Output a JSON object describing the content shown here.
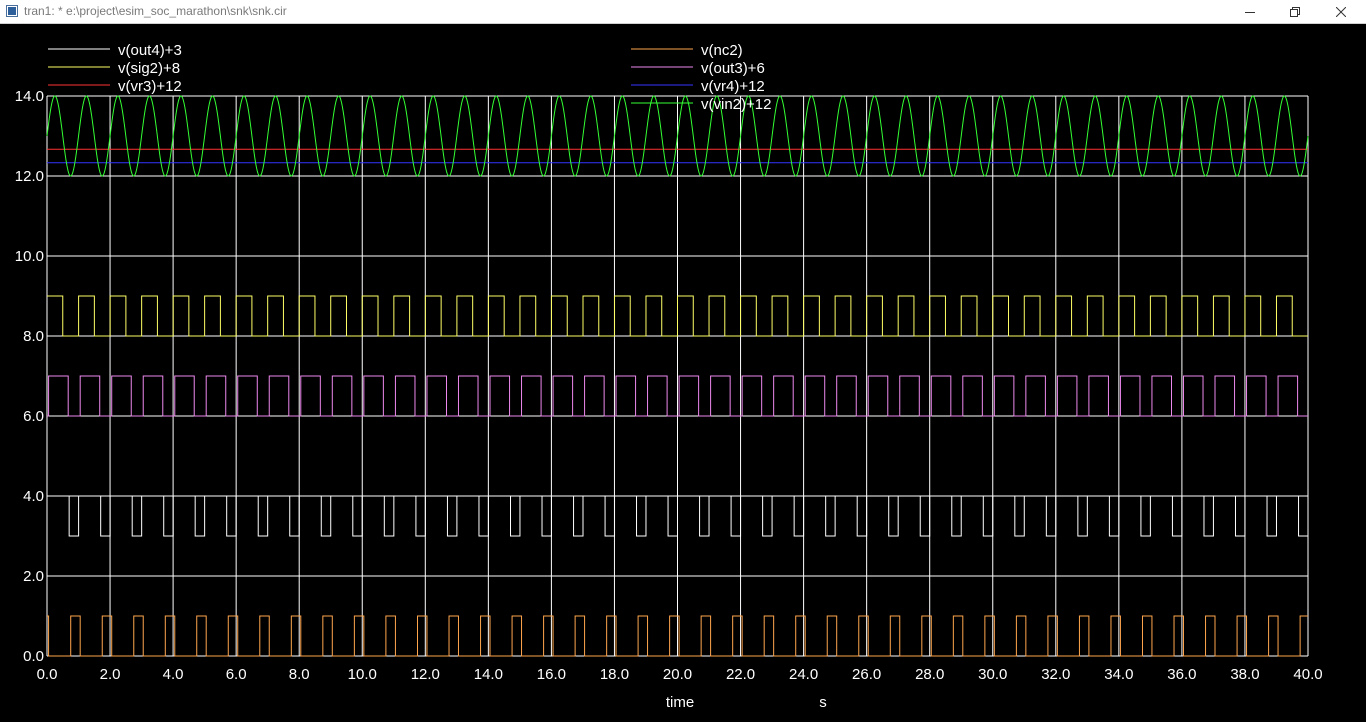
{
  "window": {
    "title": "tran1: * e:\\project\\esim_soc_marathon\\snk\\snk.cir",
    "minimize_icon": "minimize-icon",
    "restore_icon": "restore-icon",
    "close_icon": "close-icon"
  },
  "chart_data": {
    "type": "line",
    "xlabel": "time",
    "xunit": "s",
    "ylabel": "",
    "xlim": [
      0,
      40
    ],
    "ylim": [
      0,
      14
    ],
    "xticks": [
      "0.0",
      "2.0",
      "4.0",
      "6.0",
      "8.0",
      "10.0",
      "12.0",
      "14.0",
      "16.0",
      "18.0",
      "20.0",
      "22.0",
      "24.0",
      "26.0",
      "28.0",
      "30.0",
      "32.0",
      "34.0",
      "36.0",
      "38.0",
      "40.0"
    ],
    "yticks": [
      "0.0",
      "2.0",
      "4.0",
      "6.0",
      "8.0",
      "10.0",
      "12.0",
      "14.0"
    ],
    "grid": true,
    "legend_position": "top",
    "series": [
      {
        "name": "v(out4)+3",
        "color": "#ffffff",
        "shape": "pulse",
        "base": 3,
        "amplitude": 1,
        "period": 1,
        "duty": 0.7,
        "phase": 0.0
      },
      {
        "name": "v(nc2)",
        "color": "#ffa64d",
        "shape": "pulse",
        "base": 0,
        "amplitude": 1,
        "period": 1,
        "duty": 0.3,
        "phase": 0.75
      },
      {
        "name": "v(sig2)+8",
        "color": "#ffff66",
        "shape": "pulse",
        "base": 8,
        "amplitude": 1,
        "period": 1,
        "duty": 0.5,
        "phase": 0.0
      },
      {
        "name": "v(out3)+6",
        "color": "#ee88ee",
        "shape": "pulse",
        "base": 6,
        "amplitude": 1,
        "period": 1,
        "duty": 0.62,
        "phase": 0.05
      },
      {
        "name": "v(vr3)+12",
        "color": "#ff3333",
        "shape": "constant",
        "value": 12.67
      },
      {
        "name": "v(vr4)+12",
        "color": "#3333ff",
        "shape": "constant",
        "value": 12.33
      },
      {
        "name": "v(vin2)+12",
        "color": "#33ff33",
        "shape": "sine",
        "offset": 13,
        "amplitude": 1,
        "period": 1
      }
    ]
  }
}
